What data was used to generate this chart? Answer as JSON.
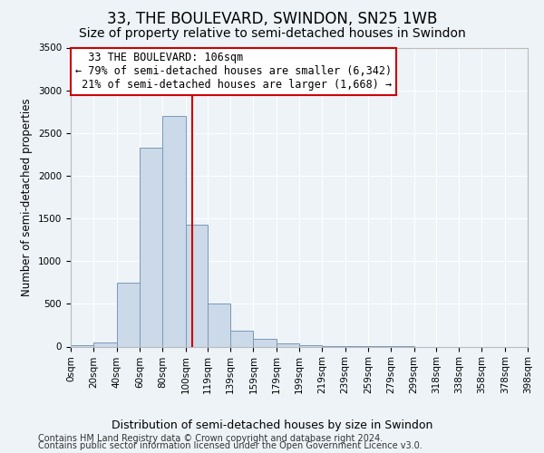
{
  "title": "33, THE BOULEVARD, SWINDON, SN25 1WB",
  "subtitle": "Size of property relative to semi-detached houses in Swindon",
  "xlabel": "Distribution of semi-detached houses by size in Swindon",
  "ylabel": "Number of semi-detached properties",
  "annotation_line1": "33 THE BOULEVARD: 106sqm",
  "annotation_line2": "← 79% of semi-detached houses are smaller (6,342)",
  "annotation_line3": "21% of semi-detached houses are larger (1,668) →",
  "footer_line1": "Contains HM Land Registry data © Crown copyright and database right 2024.",
  "footer_line2": "Contains public sector information licensed under the Open Government Licence v3.0.",
  "bar_left_edges": [
    0,
    20,
    40,
    60,
    80,
    100,
    119,
    139,
    159,
    179,
    199,
    219,
    239,
    259,
    279,
    299,
    318,
    338,
    358,
    378
  ],
  "bar_heights": [
    20,
    50,
    750,
    2330,
    2700,
    1430,
    500,
    190,
    90,
    40,
    20,
    5,
    5,
    2,
    2,
    0,
    0,
    0,
    0,
    0
  ],
  "bar_color": "#ccd9e8",
  "bar_edgecolor": "#7799bb",
  "property_size": 106,
  "vline_color": "#cc0000",
  "annotation_box_edgecolor": "#cc0000",
  "annotation_box_facecolor": "#ffffff",
  "xlim": [
    0,
    398
  ],
  "ylim": [
    0,
    3500
  ],
  "yticks": [
    0,
    500,
    1000,
    1500,
    2000,
    2500,
    3000,
    3500
  ],
  "xtick_labels": [
    "0sqm",
    "20sqm",
    "40sqm",
    "60sqm",
    "80sqm",
    "100sqm",
    "119sqm",
    "139sqm",
    "159sqm",
    "179sqm",
    "199sqm",
    "219sqm",
    "239sqm",
    "259sqm",
    "279sqm",
    "299sqm",
    "318sqm",
    "338sqm",
    "358sqm",
    "378sqm",
    "398sqm"
  ],
  "xtick_positions": [
    0,
    20,
    40,
    60,
    80,
    100,
    119,
    139,
    159,
    179,
    199,
    219,
    239,
    259,
    279,
    299,
    318,
    338,
    358,
    378,
    398
  ],
  "bg_color": "#eef3f8",
  "plot_bg_color": "#eef3f8",
  "grid_color": "#ffffff",
  "title_fontsize": 12,
  "subtitle_fontsize": 10,
  "axis_label_fontsize": 8.5,
  "tick_fontsize": 7.5,
  "annotation_fontsize": 8.5,
  "footer_fontsize": 7
}
